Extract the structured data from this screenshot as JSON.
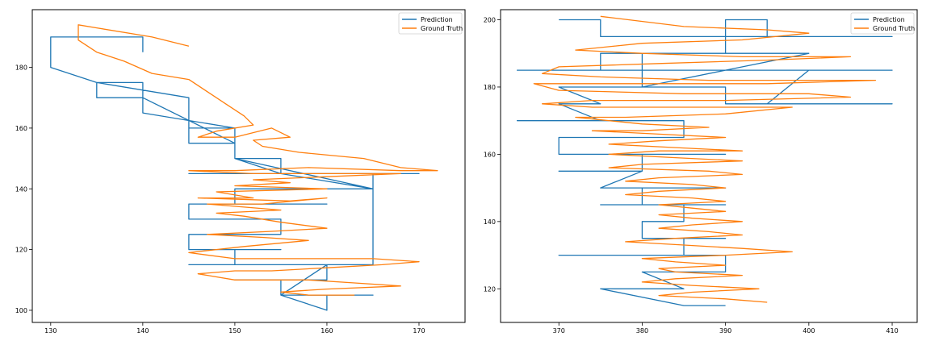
{
  "chart_data": [
    {
      "type": "line",
      "title": "",
      "xlabel": "",
      "ylabel": "",
      "xlim": [
        128,
        175
      ],
      "ylim": [
        96,
        199
      ],
      "xticks": [
        130,
        140,
        150,
        160,
        170
      ],
      "yticks": [
        100,
        120,
        140,
        160,
        180
      ],
      "legend": "top-right",
      "series": [
        {
          "name": "Prediction",
          "color": "#1f77b4",
          "points": [
            [
              140,
              185
            ],
            [
              140,
              190
            ],
            [
              130,
              190
            ],
            [
              130,
              180
            ],
            [
              135,
              175
            ],
            [
              135,
              170
            ],
            [
              140,
              170
            ],
            [
              140,
              175
            ],
            [
              135,
              175
            ],
            [
              145,
              170
            ],
            [
              145,
              160
            ],
            [
              150,
              160
            ],
            [
              145,
              160
            ],
            [
              145,
              155
            ],
            [
              150,
              155
            ],
            [
              150,
              160
            ],
            [
              140,
              165
            ],
            [
              140,
              170
            ],
            [
              150,
              155
            ],
            [
              150,
              150
            ],
            [
              155,
              150
            ],
            [
              155,
              145
            ],
            [
              145,
              145
            ],
            [
              155,
              145
            ],
            [
              150,
              150
            ],
            [
              165,
              140
            ],
            [
              150,
              140
            ],
            [
              150,
              135
            ],
            [
              160,
              135
            ],
            [
              145,
              135
            ],
            [
              145,
              130
            ],
            [
              155,
              130
            ],
            [
              155,
              125
            ],
            [
              145,
              125
            ],
            [
              145,
              120
            ],
            [
              155,
              120
            ],
            [
              150,
              120
            ],
            [
              150,
              115
            ],
            [
              165,
              115
            ],
            [
              145,
              115
            ],
            [
              150,
              115
            ],
            [
              160,
              115
            ],
            [
              160,
              110
            ],
            [
              150,
              110
            ],
            [
              160,
              110
            ],
            [
              155,
              110
            ],
            [
              155,
              105
            ],
            [
              165,
              105
            ],
            [
              155,
              105
            ],
            [
              160,
              100
            ],
            [
              160,
              105
            ],
            [
              155,
              105
            ],
            [
              160,
              115
            ],
            [
              165,
              115
            ],
            [
              165,
              145
            ],
            [
              170,
              145
            ],
            [
              150,
              145
            ],
            [
              165,
              145
            ],
            [
              165,
              140
            ],
            [
              155,
              145
            ],
            [
              170,
              145
            ]
          ]
        },
        {
          "name": "Ground Truth",
          "color": "#ff7f0e",
          "points": [
            [
              145,
              187
            ],
            [
              141,
              190
            ],
            [
              135,
              193
            ],
            [
              133,
              194
            ],
            [
              133,
              189
            ],
            [
              135,
              185
            ],
            [
              138,
              182
            ],
            [
              141,
              178
            ],
            [
              145,
              176
            ],
            [
              147,
              172
            ],
            [
              149,
              168
            ],
            [
              151,
              164
            ],
            [
              152,
              161
            ],
            [
              148,
              159
            ],
            [
              146,
              157
            ],
            [
              150,
              157
            ],
            [
              154,
              160
            ],
            [
              156,
              157
            ],
            [
              152,
              156
            ],
            [
              153,
              154
            ],
            [
              157,
              152
            ],
            [
              164,
              150
            ],
            [
              168,
              147
            ],
            [
              172,
              146
            ],
            [
              168,
              146
            ],
            [
              158,
              147
            ],
            [
              150,
              146
            ],
            [
              145,
              146
            ],
            [
              152,
              145
            ],
            [
              160,
              145
            ],
            [
              168,
              145
            ],
            [
              160,
              144
            ],
            [
              152,
              143
            ],
            [
              156,
              142
            ],
            [
              150,
              141
            ],
            [
              160,
              140
            ],
            [
              148,
              139
            ],
            [
              152,
              137
            ],
            [
              146,
              137
            ],
            [
              156,
              136
            ],
            [
              160,
              137
            ],
            [
              153,
              135
            ],
            [
              147,
              135
            ],
            [
              155,
              133
            ],
            [
              148,
              132
            ],
            [
              151,
              131
            ],
            [
              155,
              129
            ],
            [
              160,
              127
            ],
            [
              154,
              126
            ],
            [
              147,
              125
            ],
            [
              153,
              124
            ],
            [
              158,
              123
            ],
            [
              151,
              121
            ],
            [
              145,
              119
            ],
            [
              150,
              117
            ],
            [
              158,
              117
            ],
            [
              165,
              117
            ],
            [
              170,
              116
            ],
            [
              166,
              115
            ],
            [
              160,
              114
            ],
            [
              154,
              113
            ],
            [
              150,
              113
            ],
            [
              146,
              112
            ],
            [
              150,
              110
            ],
            [
              158,
              110
            ],
            [
              163,
              109
            ],
            [
              168,
              108
            ],
            [
              160,
              107
            ],
            [
              155,
              106
            ],
            [
              158,
              105
            ],
            [
              163,
              105
            ]
          ]
        }
      ]
    },
    {
      "type": "line",
      "title": "",
      "xlabel": "",
      "ylabel": "",
      "xlim": [
        363,
        413
      ],
      "ylim": [
        110,
        203
      ],
      "xticks": [
        370,
        380,
        390,
        400,
        410
      ],
      "yticks": [
        120,
        140,
        160,
        180,
        200
      ],
      "legend": "top-right",
      "series": [
        {
          "name": "Prediction",
          "color": "#1f77b4",
          "points": [
            [
              370,
              200
            ],
            [
              375,
              200
            ],
            [
              375,
              195
            ],
            [
              410,
              195
            ],
            [
              395,
              195
            ],
            [
              395,
              200
            ],
            [
              390,
              200
            ],
            [
              390,
              190
            ],
            [
              380,
              190
            ],
            [
              380,
              180
            ],
            [
              390,
              180
            ],
            [
              390,
              175
            ],
            [
              410,
              175
            ],
            [
              395,
              175
            ],
            [
              400,
              185
            ],
            [
              410,
              185
            ],
            [
              365,
              185
            ],
            [
              375,
              185
            ],
            [
              375,
              190
            ],
            [
              400,
              190
            ],
            [
              390,
              185
            ],
            [
              380,
              180
            ],
            [
              370,
              180
            ],
            [
              375,
              175
            ],
            [
              370,
              175
            ],
            [
              375,
              170
            ],
            [
              370,
              170
            ],
            [
              365,
              170
            ],
            [
              385,
              170
            ],
            [
              385,
              165
            ],
            [
              370,
              165
            ],
            [
              370,
              160
            ],
            [
              390,
              160
            ],
            [
              380,
              160
            ],
            [
              380,
              155
            ],
            [
              370,
              155
            ],
            [
              380,
              155
            ],
            [
              375,
              150
            ],
            [
              390,
              150
            ],
            [
              380,
              150
            ],
            [
              380,
              145
            ],
            [
              375,
              145
            ],
            [
              390,
              145
            ],
            [
              385,
              145
            ],
            [
              385,
              140
            ],
            [
              380,
              140
            ],
            [
              380,
              135
            ],
            [
              390,
              135
            ],
            [
              385,
              135
            ],
            [
              385,
              130
            ],
            [
              370,
              130
            ],
            [
              390,
              130
            ],
            [
              390,
              125
            ],
            [
              380,
              125
            ],
            [
              385,
              120
            ],
            [
              375,
              120
            ],
            [
              385,
              115
            ],
            [
              390,
              115
            ]
          ]
        },
        {
          "name": "Ground Truth",
          "color": "#ff7f0e",
          "points": [
            [
              375,
              201
            ],
            [
              385,
              198
            ],
            [
              395,
              197
            ],
            [
              400,
              196
            ],
            [
              392,
              194
            ],
            [
              380,
              193
            ],
            [
              372,
              191
            ],
            [
              380,
              190
            ],
            [
              392,
              189
            ],
            [
              405,
              189
            ],
            [
              395,
              188
            ],
            [
              382,
              187
            ],
            [
              370,
              186
            ],
            [
              368,
              184
            ],
            [
              375,
              183
            ],
            [
              388,
              182
            ],
            [
              400,
              182
            ],
            [
              408,
              182
            ],
            [
              395,
              181
            ],
            [
              380,
              181
            ],
            [
              367,
              181
            ],
            [
              370,
              179
            ],
            [
              385,
              178
            ],
            [
              400,
              178
            ],
            [
              405,
              177
            ],
            [
              390,
              176
            ],
            [
              374,
              176
            ],
            [
              368,
              175
            ],
            [
              374,
              174
            ],
            [
              388,
              174
            ],
            [
              398,
              174
            ],
            [
              390,
              172
            ],
            [
              378,
              171
            ],
            [
              372,
              171
            ],
            [
              380,
              169
            ],
            [
              388,
              168
            ],
            [
              380,
              167
            ],
            [
              374,
              167
            ],
            [
              382,
              166
            ],
            [
              390,
              165
            ],
            [
              382,
              164
            ],
            [
              376,
              163
            ],
            [
              384,
              162
            ],
            [
              392,
              161
            ],
            [
              382,
              161
            ],
            [
              376,
              160
            ],
            [
              384,
              159
            ],
            [
              392,
              158
            ],
            [
              380,
              157
            ],
            [
              376,
              156
            ],
            [
              388,
              155
            ],
            [
              392,
              154
            ],
            [
              382,
              153
            ],
            [
              378,
              152
            ],
            [
              386,
              151
            ],
            [
              390,
              150
            ],
            [
              382,
              149
            ],
            [
              378,
              148
            ],
            [
              386,
              147
            ],
            [
              390,
              146
            ],
            [
              382,
              145
            ],
            [
              386,
              144
            ],
            [
              390,
              143
            ],
            [
              382,
              142
            ],
            [
              386,
              141
            ],
            [
              392,
              140
            ],
            [
              386,
              139
            ],
            [
              382,
              138
            ],
            [
              388,
              137
            ],
            [
              392,
              136
            ],
            [
              384,
              135
            ],
            [
              378,
              134
            ],
            [
              385,
              133
            ],
            [
              392,
              132
            ],
            [
              398,
              131
            ],
            [
              390,
              130
            ],
            [
              380,
              129
            ],
            [
              384,
              128
            ],
            [
              390,
              127
            ],
            [
              382,
              126
            ],
            [
              384,
              125
            ],
            [
              392,
              124
            ],
            [
              384,
              123
            ],
            [
              380,
              122
            ],
            [
              386,
              121
            ],
            [
              394,
              120
            ],
            [
              386,
              119
            ],
            [
              382,
              118
            ],
            [
              390,
              117
            ],
            [
              395,
              116
            ]
          ]
        }
      ]
    }
  ]
}
